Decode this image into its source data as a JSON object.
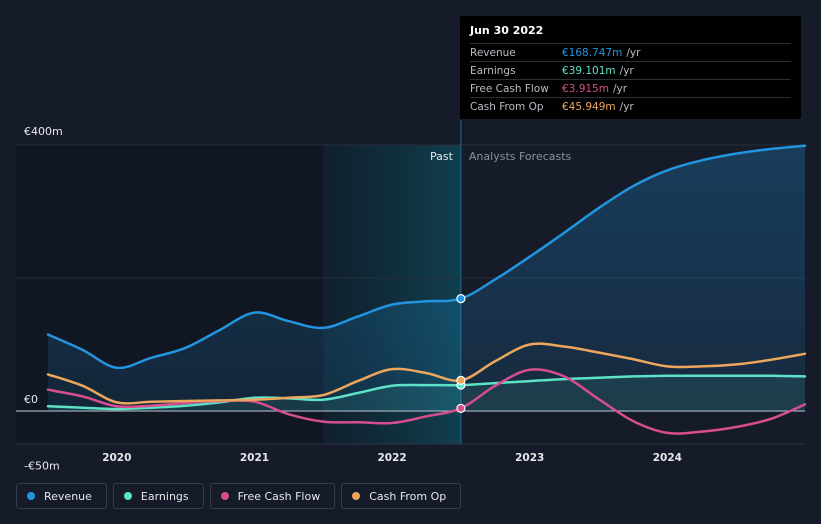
{
  "chart_data": {
    "type": "area",
    "x_unit": "year",
    "xlim": [
      2019.5,
      2025.0
    ],
    "ylim": [
      -50,
      400
    ],
    "y_ticks": [
      {
        "value": 400,
        "label": "€400m"
      },
      {
        "value": 0,
        "label": "€0"
      },
      {
        "value": -50,
        "label": "-€50m"
      }
    ],
    "x_ticks": [
      {
        "value": 2020,
        "label": "2020"
      },
      {
        "value": 2021,
        "label": "2021"
      },
      {
        "value": 2022,
        "label": "2022"
      },
      {
        "value": 2023,
        "label": "2023"
      },
      {
        "value": 2024,
        "label": "2024"
      }
    ],
    "past_label": "Past",
    "forecast_label": "Analysts Forecasts",
    "divider_x": 2022.5,
    "highlight_start": 2021.5,
    "series": [
      {
        "name": "Revenue",
        "color": "#2394df",
        "fill": true,
        "points": [
          [
            2019.5,
            115
          ],
          [
            2019.75,
            92
          ],
          [
            2020.0,
            65
          ],
          [
            2020.25,
            80
          ],
          [
            2020.5,
            95
          ],
          [
            2020.75,
            122
          ],
          [
            2021.0,
            148
          ],
          [
            2021.25,
            135
          ],
          [
            2021.5,
            125
          ],
          [
            2021.75,
            142
          ],
          [
            2022.0,
            160
          ],
          [
            2022.25,
            165
          ],
          [
            2022.5,
            169
          ],
          [
            2022.75,
            198
          ],
          [
            2023.0,
            232
          ],
          [
            2023.25,
            268
          ],
          [
            2023.5,
            305
          ],
          [
            2023.75,
            338
          ],
          [
            2024.0,
            362
          ],
          [
            2024.25,
            377
          ],
          [
            2024.5,
            387
          ],
          [
            2024.75,
            394
          ],
          [
            2025.0,
            399
          ]
        ]
      },
      {
        "name": "Earnings",
        "color": "#5de1c7",
        "fill": true,
        "points": [
          [
            2019.5,
            7
          ],
          [
            2019.75,
            5
          ],
          [
            2020.0,
            3
          ],
          [
            2020.25,
            5
          ],
          [
            2020.5,
            8
          ],
          [
            2020.75,
            13
          ],
          [
            2021.0,
            20
          ],
          [
            2021.25,
            19
          ],
          [
            2021.5,
            17
          ],
          [
            2021.75,
            27
          ],
          [
            2022.0,
            38
          ],
          [
            2022.25,
            39
          ],
          [
            2022.5,
            39
          ],
          [
            2022.75,
            42
          ],
          [
            2023.0,
            45
          ],
          [
            2023.25,
            48
          ],
          [
            2023.5,
            50
          ],
          [
            2023.75,
            52
          ],
          [
            2024.0,
            53
          ],
          [
            2024.25,
            53
          ],
          [
            2024.5,
            53
          ],
          [
            2024.75,
            53
          ],
          [
            2025.0,
            52
          ]
        ]
      },
      {
        "name": "Free Cash Flow",
        "color": "#d64e8d",
        "fill": false,
        "points": [
          [
            2019.5,
            32
          ],
          [
            2019.75,
            22
          ],
          [
            2020.0,
            7
          ],
          [
            2020.25,
            8
          ],
          [
            2020.5,
            12
          ],
          [
            2020.75,
            15
          ],
          [
            2021.0,
            14
          ],
          [
            2021.25,
            -5
          ],
          [
            2021.5,
            -16
          ],
          [
            2021.75,
            -17
          ],
          [
            2022.0,
            -18
          ],
          [
            2022.25,
            -8
          ],
          [
            2022.5,
            4
          ],
          [
            2022.75,
            38
          ],
          [
            2023.0,
            62
          ],
          [
            2023.25,
            52
          ],
          [
            2023.5,
            18
          ],
          [
            2023.75,
            -15
          ],
          [
            2024.0,
            -33
          ],
          [
            2024.25,
            -31
          ],
          [
            2024.5,
            -24
          ],
          [
            2024.75,
            -12
          ],
          [
            2025.0,
            10
          ]
        ]
      },
      {
        "name": "Cash From Op",
        "color": "#eca75d",
        "fill": false,
        "points": [
          [
            2019.5,
            55
          ],
          [
            2019.75,
            38
          ],
          [
            2020.0,
            13
          ],
          [
            2020.25,
            14
          ],
          [
            2020.5,
            15
          ],
          [
            2020.75,
            16
          ],
          [
            2021.0,
            17
          ],
          [
            2021.25,
            20
          ],
          [
            2021.5,
            24
          ],
          [
            2021.75,
            45
          ],
          [
            2022.0,
            63
          ],
          [
            2022.25,
            57
          ],
          [
            2022.5,
            46
          ],
          [
            2022.75,
            75
          ],
          [
            2023.0,
            100
          ],
          [
            2023.25,
            97
          ],
          [
            2023.5,
            88
          ],
          [
            2023.75,
            78
          ],
          [
            2024.0,
            67
          ],
          [
            2024.25,
            67
          ],
          [
            2024.5,
            70
          ],
          [
            2024.75,
            77
          ],
          [
            2025.0,
            86
          ]
        ]
      }
    ],
    "tooltip": {
      "date": "Jun 30 2022",
      "rows": [
        {
          "label": "Revenue",
          "value": "€168.747m",
          "unit": "/yr",
          "color": "#2394df"
        },
        {
          "label": "Earnings",
          "value": "€39.101m",
          "unit": "/yr",
          "color": "#5de1c7"
        },
        {
          "label": "Free Cash Flow",
          "value": "€3.915m",
          "unit": "/yr",
          "color": "#d64e8d"
        },
        {
          "label": "Cash From Op",
          "value": "€45.949m",
          "unit": "/yr",
          "color": "#eca75d"
        }
      ]
    }
  },
  "legend": [
    {
      "label": "Revenue",
      "color": "#2394df"
    },
    {
      "label": "Earnings",
      "color": "#5de1c7"
    },
    {
      "label": "Free Cash Flow",
      "color": "#d64e8d"
    },
    {
      "label": "Cash From Op",
      "color": "#eca75d"
    }
  ]
}
